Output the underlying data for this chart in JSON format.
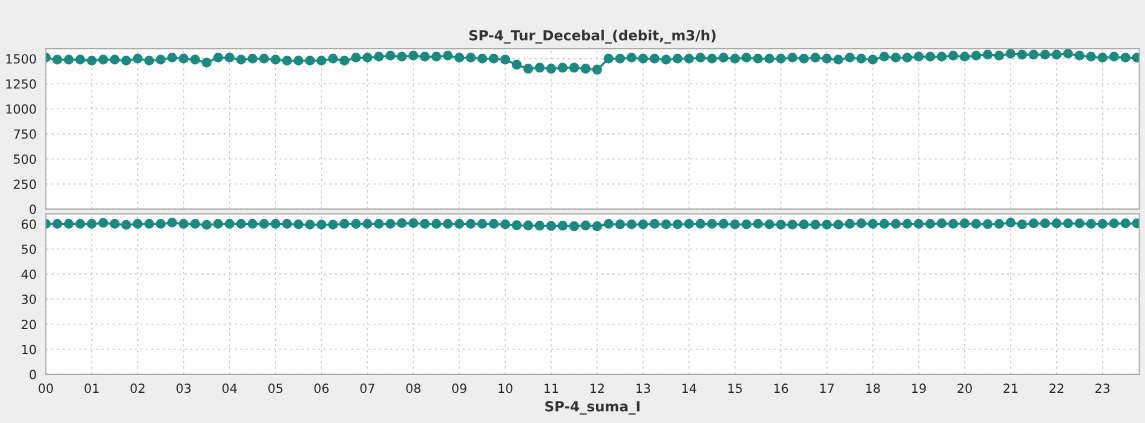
{
  "chart_data": [
    {
      "type": "line",
      "title": "SP-4_Tur_Decebal_(debit,_m3/h)",
      "tick_labels": "y",
      "grid": true,
      "marker": "circle",
      "line_style": "solid",
      "x": [
        0,
        0.25,
        0.5,
        0.75,
        1,
        1.25,
        1.5,
        1.75,
        2,
        2.25,
        2.5,
        2.75,
        3,
        3.25,
        3.5,
        3.75,
        4,
        4.25,
        4.5,
        4.75,
        5,
        5.25,
        5.5,
        5.75,
        6,
        6.25,
        6.5,
        6.75,
        7,
        7.25,
        7.5,
        7.75,
        8,
        8.25,
        8.5,
        8.75,
        9,
        9.25,
        9.5,
        9.75,
        10,
        10.25,
        10.5,
        10.75,
        11,
        11.25,
        11.5,
        11.75,
        12,
        12.25,
        12.5,
        12.75,
        13,
        13.25,
        13.5,
        13.75,
        14,
        14.25,
        14.5,
        14.75,
        15,
        15.25,
        15.5,
        15.75,
        16,
        16.25,
        16.5,
        16.75,
        17,
        17.25,
        17.5,
        17.75,
        18,
        18.25,
        18.5,
        18.75,
        19,
        19.25,
        19.5,
        19.75,
        20,
        20.25,
        20.5,
        20.75,
        21,
        21.25,
        21.5,
        21.75,
        22,
        22.25,
        22.5,
        22.75,
        23,
        23.25,
        23.5,
        23.75
      ],
      "xlim": [
        0,
        23.8
      ],
      "xticks": [
        {
          "value": 0,
          "label": null
        },
        {
          "value": 1,
          "label": null
        },
        {
          "value": 2,
          "label": null
        },
        {
          "value": 3,
          "label": null
        },
        {
          "value": 4,
          "label": null
        },
        {
          "value": 5,
          "label": null
        },
        {
          "value": 6,
          "label": null
        },
        {
          "value": 7,
          "label": null
        },
        {
          "value": 8,
          "label": null
        },
        {
          "value": 9,
          "label": null
        },
        {
          "value": 10,
          "label": null
        },
        {
          "value": 11,
          "label": null
        },
        {
          "value": 12,
          "label": null
        },
        {
          "value": 13,
          "label": null
        },
        {
          "value": 14,
          "label": null
        },
        {
          "value": 15,
          "label": null
        },
        {
          "value": 16,
          "label": null
        },
        {
          "value": 17,
          "label": null
        },
        {
          "value": 18,
          "label": null
        },
        {
          "value": 19,
          "label": null
        },
        {
          "value": 20,
          "label": null
        },
        {
          "value": 21,
          "label": null
        },
        {
          "value": 22,
          "label": null
        },
        {
          "value": 23,
          "label": null
        }
      ],
      "ylim": [
        0,
        1600
      ],
      "yticks": [
        0,
        250,
        500,
        750,
        1000,
        1250,
        1500
      ],
      "series": [
        {
          "color": "#1a8a80",
          "values": [
            1510,
            1490,
            1490,
            1490,
            1480,
            1490,
            1490,
            1480,
            1500,
            1480,
            1490,
            1510,
            1500,
            1490,
            1460,
            1510,
            1510,
            1490,
            1500,
            1500,
            1490,
            1480,
            1480,
            1480,
            1480,
            1500,
            1480,
            1510,
            1510,
            1520,
            1530,
            1520,
            1530,
            1520,
            1520,
            1530,
            1510,
            1510,
            1500,
            1500,
            1490,
            1440,
            1400,
            1410,
            1400,
            1410,
            1410,
            1400,
            1390,
            1500,
            1500,
            1510,
            1500,
            1500,
            1490,
            1500,
            1500,
            1510,
            1500,
            1510,
            1500,
            1510,
            1500,
            1500,
            1500,
            1510,
            1500,
            1510,
            1500,
            1490,
            1510,
            1500,
            1490,
            1520,
            1510,
            1510,
            1520,
            1520,
            1520,
            1530,
            1520,
            1530,
            1540,
            1530,
            1550,
            1540,
            1540,
            1540,
            1540,
            1550,
            1530,
            1520,
            1510,
            1520,
            1510,
            1510
          ]
        }
      ]
    },
    {
      "type": "line",
      "xlabel": "SP-4_suma_I",
      "grid": true,
      "marker": "circle",
      "line_style": "solid",
      "x": [
        0,
        0.25,
        0.5,
        0.75,
        1,
        1.25,
        1.5,
        1.75,
        2,
        2.25,
        2.5,
        2.75,
        3,
        3.25,
        3.5,
        3.75,
        4,
        4.25,
        4.5,
        4.75,
        5,
        5.25,
        5.5,
        5.75,
        6,
        6.25,
        6.5,
        6.75,
        7,
        7.25,
        7.5,
        7.75,
        8,
        8.25,
        8.5,
        8.75,
        9,
        9.25,
        9.5,
        9.75,
        10,
        10.25,
        10.5,
        10.75,
        11,
        11.25,
        11.5,
        11.75,
        12,
        12.25,
        12.5,
        12.75,
        13,
        13.25,
        13.5,
        13.75,
        14,
        14.25,
        14.5,
        14.75,
        15,
        15.25,
        15.5,
        15.75,
        16,
        16.25,
        16.5,
        16.75,
        17,
        17.25,
        17.5,
        17.75,
        18,
        18.25,
        18.5,
        18.75,
        19,
        19.25,
        19.5,
        19.75,
        20,
        20.25,
        20.5,
        20.75,
        21,
        21.25,
        21.5,
        21.75,
        22,
        22.25,
        22.5,
        22.75,
        23,
        23.25,
        23.5,
        23.75
      ],
      "xlim": [
        0,
        23.8
      ],
      "xticks": [
        {
          "value": 0,
          "label": "00"
        },
        {
          "value": 1,
          "label": "01"
        },
        {
          "value": 2,
          "label": "02"
        },
        {
          "value": 3,
          "label": "03"
        },
        {
          "value": 4,
          "label": "04"
        },
        {
          "value": 5,
          "label": "05"
        },
        {
          "value": 6,
          "label": "06"
        },
        {
          "value": 7,
          "label": "07"
        },
        {
          "value": 8,
          "label": "08"
        },
        {
          "value": 9,
          "label": "09"
        },
        10,
        11,
        12,
        13,
        14,
        15,
        16,
        17,
        18,
        19,
        20,
        21,
        22,
        23
      ],
      "ylim": [
        0,
        64
      ],
      "yticks": [
        0,
        10,
        20,
        30,
        40,
        50,
        60
      ],
      "series": [
        {
          "color": "#1a8a80",
          "values": [
            60,
            60,
            60,
            60,
            60,
            60.4,
            60,
            59.6,
            60,
            60,
            60,
            60.5,
            60,
            60,
            59.6,
            60,
            60,
            60,
            60,
            60,
            60,
            60,
            59.8,
            59.7,
            59.7,
            59.7,
            60,
            60,
            60,
            60,
            60,
            60.3,
            60.3,
            60,
            60,
            60,
            60,
            60,
            60,
            60,
            59.8,
            59.5,
            59.4,
            59.3,
            59.2,
            59.3,
            59.1,
            59.4,
            59.1,
            60,
            59.8,
            59.8,
            59.8,
            60,
            59.8,
            59.8,
            60,
            60,
            60,
            60,
            59.8,
            59.8,
            60,
            59.8,
            59.7,
            59.7,
            59.8,
            59.7,
            59.7,
            59.7,
            60,
            60.2,
            60,
            60,
            60,
            60,
            60,
            60,
            60.2,
            60,
            60.2,
            60,
            59.9,
            60,
            60.5,
            59.8,
            60.2,
            60.2,
            60.2,
            60.2,
            60.2,
            60,
            60,
            60.2,
            60.2,
            60.2
          ]
        }
      ]
    }
  ]
}
